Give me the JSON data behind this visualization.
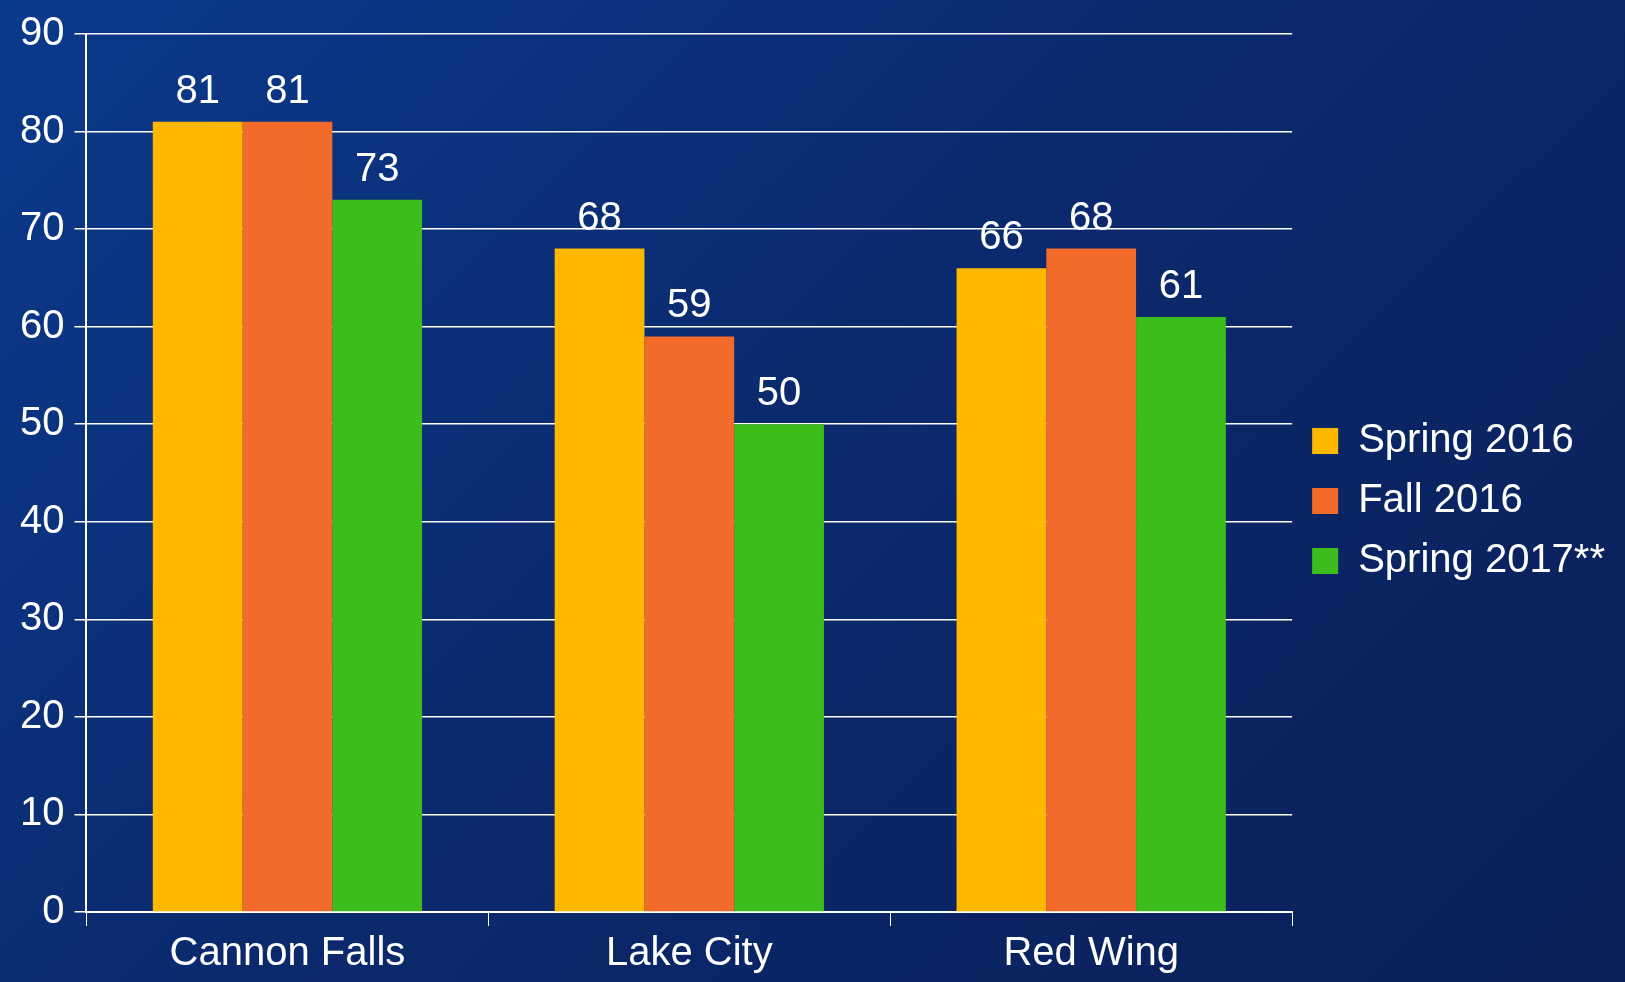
{
  "chart_data": {
    "type": "bar",
    "categories": [
      "Cannon Falls",
      "Lake City",
      "Red Wing"
    ],
    "series": [
      {
        "name": "Spring 2016",
        "color": "#ffb800",
        "values": [
          81,
          68,
          66
        ]
      },
      {
        "name": "Fall 2016",
        "color": "#f26b2a",
        "values": [
          81,
          59,
          68
        ]
      },
      {
        "name": "Spring 2017**",
        "color": "#3cbd1c",
        "values": [
          73,
          50,
          61
        ]
      }
    ],
    "ylim": [
      0,
      90
    ],
    "yticks": [
      0,
      10,
      20,
      30,
      40,
      50,
      60,
      70,
      80,
      90
    ],
    "grid": "y",
    "legend": "right",
    "data_labels": true
  }
}
